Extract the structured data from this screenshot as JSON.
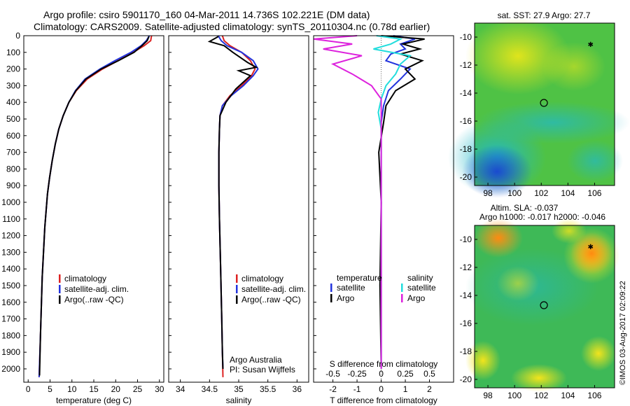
{
  "header": {
    "line1": "Argo profile: csiro 5901170_160 04-Mar-2011 14.736S 102.221E (DM data)",
    "line2": "Climatology: CARS2009. Satellite-adjusted climatology: synTS_20110304.nc (0.78d earlier)"
  },
  "colors": {
    "climatology": "#dd2222",
    "satellite": "#2233dd",
    "argo": "#000000",
    "salinity_satellite": "#22dddd",
    "salinity_argo": "#dd22dd"
  },
  "chart_data": [
    {
      "type": "line",
      "name": "temperature",
      "xlabel": "temperature (deg C)",
      "ylabel": "",
      "xlim": [
        -1,
        31
      ],
      "xticks": [
        0,
        5,
        10,
        15,
        20,
        25,
        30
      ],
      "ylim": [
        0,
        2080
      ],
      "yticks": [
        0,
        100,
        200,
        300,
        400,
        500,
        600,
        700,
        800,
        900,
        1000,
        1100,
        1200,
        1300,
        1400,
        1500,
        1600,
        1700,
        1800,
        1900,
        2000
      ],
      "legend": {
        "placement": "bottom-center",
        "entries": [
          "climatology",
          "satellite-adj. clim.",
          "Argo(..raw -QC)"
        ]
      },
      "series": [
        {
          "name": "climatology",
          "x": [
            28.2,
            28.0,
            26.5,
            24.0,
            20.5,
            17.0,
            13.5,
            11.0,
            9.3,
            8.0,
            7.0,
            6.2,
            5.5,
            4.9,
            4.4,
            3.8,
            3.2,
            2.8,
            2.5
          ],
          "y": [
            0,
            30,
            60,
            100,
            150,
            200,
            260,
            330,
            400,
            480,
            560,
            650,
            750,
            850,
            950,
            1150,
            1450,
            1800,
            2050
          ]
        },
        {
          "name": "satellite-adj. clim.",
          "x": [
            27.7,
            27.0,
            25.8,
            23.5,
            19.8,
            16.4,
            13.0,
            10.8,
            9.3,
            8.0,
            7.0,
            6.2,
            5.5,
            4.9,
            4.4,
            3.8,
            3.2,
            2.8,
            2.5
          ],
          "y": [
            0,
            30,
            60,
            100,
            150,
            200,
            260,
            330,
            400,
            480,
            560,
            650,
            750,
            850,
            950,
            1150,
            1450,
            1800,
            2050
          ]
        },
        {
          "name": "Argo(..raw -QC)",
          "x": [
            27.6,
            27.2,
            26.0,
            24.2,
            20.6,
            16.7,
            13.2,
            10.9,
            9.3,
            8.0,
            7.0,
            6.2,
            5.5,
            4.9,
            4.4,
            3.8,
            3.2,
            2.8,
            2.6
          ],
          "y": [
            5,
            30,
            60,
            100,
            150,
            200,
            260,
            330,
            400,
            480,
            560,
            650,
            750,
            850,
            950,
            1150,
            1450,
            1800,
            2040
          ]
        }
      ]
    },
    {
      "type": "line",
      "name": "salinity",
      "xlabel": "salinity",
      "ylabel": "",
      "xlim": [
        33.8,
        36.2
      ],
      "xticks": [
        34,
        34.5,
        35,
        35.5,
        36
      ],
      "ylim": [
        0,
        2080
      ],
      "legend": {
        "placement": "bottom-right",
        "entries": [
          "climatology",
          "satellite-adj. clim.",
          "Argo(..raw -QC)"
        ]
      },
      "annotation": [
        "Argo Australia",
        "PI: Susan Wijffels"
      ],
      "series": [
        {
          "name": "climatology",
          "x": [
            34.72,
            34.75,
            34.85,
            35.05,
            35.2,
            35.28,
            35.22,
            35.05,
            34.85,
            34.72,
            34.68,
            34.67,
            34.66,
            34.66,
            34.67,
            34.69,
            34.71,
            34.72,
            34.73
          ],
          "y": [
            0,
            30,
            60,
            100,
            150,
            200,
            240,
            300,
            360,
            420,
            480,
            560,
            700,
            900,
            1100,
            1400,
            1700,
            1900,
            2050
          ]
        },
        {
          "name": "satellite-adj. clim.",
          "x": [
            34.65,
            34.7,
            34.8,
            35.05,
            35.25,
            35.33,
            35.25,
            35.08,
            34.87,
            34.72,
            34.68,
            34.67,
            34.66,
            34.66,
            34.67,
            34.69,
            34.71,
            34.72,
            34.73
          ],
          "y": [
            0,
            30,
            60,
            100,
            150,
            200,
            240,
            300,
            360,
            420,
            480,
            560,
            700,
            900,
            1100,
            1400,
            1700,
            1900,
            2000
          ]
        },
        {
          "name": "Argo(..raw -QC)",
          "x": [
            34.65,
            34.5,
            34.75,
            34.9,
            35.15,
            35.3,
            35.0,
            35.2,
            34.95,
            34.78,
            34.68,
            34.67,
            34.66,
            34.66,
            34.67,
            34.69,
            34.71,
            34.72,
            34.73
          ],
          "y": [
            5,
            35,
            60,
            100,
            160,
            190,
            210,
            240,
            320,
            400,
            480,
            560,
            700,
            900,
            1100,
            1400,
            1700,
            1900,
            2000
          ]
        }
      ]
    },
    {
      "type": "line",
      "name": "difference",
      "xlabel": "T difference from climatology",
      "xlabel_top": "S difference from climatology",
      "xlim": [
        -2.8,
        3.0
      ],
      "xticks": [
        -2,
        -1,
        0,
        1,
        2
      ],
      "s_xticks": [
        -0.5,
        -0.25,
        0,
        0.25,
        0.5
      ],
      "ylim": [
        0,
        2080
      ],
      "legend": {
        "placement": "bottom-center",
        "temperature_title": "temperature",
        "salinity_title": "salinity",
        "entries_temperature": [
          "satellite",
          "Argo"
        ],
        "entries_salinity": [
          "satellite",
          "Argo"
        ]
      },
      "series": [
        {
          "name": "temperature satellite",
          "x": [
            0.5,
            1.4,
            0.8,
            1.0,
            0.4,
            0.2,
            1.2,
            0.8,
            0.3,
            0.1,
            0,
            0,
            0,
            0,
            0
          ],
          "y": [
            0,
            20,
            50,
            80,
            110,
            150,
            200,
            260,
            330,
            420,
            520,
            700,
            1000,
            1500,
            2000
          ]
        },
        {
          "name": "temperature Argo",
          "x": [
            0,
            1.8,
            0.9,
            1.6,
            0.8,
            1.7,
            1.0,
            1.4,
            0.6,
            0.2,
            0.1,
            -0.1,
            0,
            -0.05,
            0
          ],
          "y": [
            0,
            20,
            50,
            80,
            110,
            150,
            200,
            260,
            330,
            420,
            520,
            700,
            1000,
            1500,
            2000
          ]
        },
        {
          "name": "salinity satellite",
          "x": [
            -0.05,
            0.2,
            0.1,
            -0.08,
            0.3,
            0.2,
            0.15,
            0.05,
            0.0,
            -0.03,
            0,
            0,
            0,
            0,
            0
          ],
          "y": [
            0,
            20,
            50,
            80,
            120,
            170,
            230,
            300,
            380,
            460,
            560,
            800,
            1100,
            1600,
            2000
          ]
        },
        {
          "name": "salinity Argo",
          "x": [
            -0.25,
            -0.7,
            -0.3,
            -0.6,
            -0.2,
            -0.5,
            -0.3,
            -0.1,
            0.0,
            0,
            0,
            0,
            0,
            0,
            0
          ],
          "y": [
            0,
            20,
            50,
            80,
            120,
            170,
            230,
            300,
            380,
            460,
            560,
            800,
            1100,
            1600,
            2000
          ]
        }
      ]
    },
    {
      "type": "heatmap",
      "name": "sst-map",
      "title": "sat. SST: 27.9  Argo: 27.7",
      "xlim": [
        97,
        107.5
      ],
      "ylim": [
        -20.6,
        -9
      ],
      "xticks": [
        98,
        100,
        102,
        104,
        106
      ],
      "yticks": [
        -10,
        -12,
        -14,
        -16,
        -18,
        -20
      ],
      "marker_circle": {
        "lon": 102.2,
        "lat": -14.7
      },
      "marker_star": {
        "lon": 105.7,
        "lat": -10.5
      }
    },
    {
      "type": "heatmap",
      "name": "sla-map",
      "title_line1": "Altim. SLA: -0.037",
      "title_line2": "Argo h1000: -0.017  h2000: -0.046",
      "xlim": [
        97,
        107.5
      ],
      "ylim": [
        -20.6,
        -9
      ],
      "xticks": [
        98,
        100,
        102,
        104,
        106
      ],
      "yticks": [
        -10,
        -12,
        -14,
        -16,
        -18,
        -20
      ],
      "marker_circle": {
        "lon": 102.2,
        "lat": -14.7
      },
      "marker_star": {
        "lon": 105.7,
        "lat": -10.5
      }
    }
  ],
  "footer": {
    "timestamp": "©IMOS 03-Aug-2017 02:09:22"
  }
}
